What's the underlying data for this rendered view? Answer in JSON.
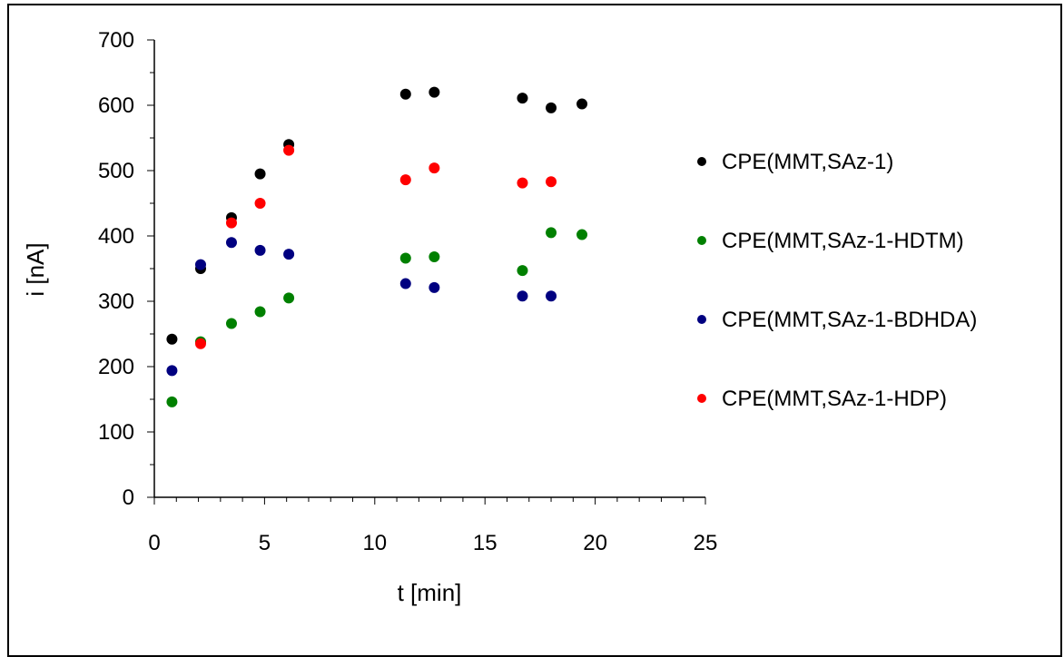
{
  "chart_data": {
    "type": "scatter",
    "xlabel": "t [min]",
    "ylabel": "i [nA]",
    "xlim": [
      0,
      25
    ],
    "ylim": [
      0,
      700
    ],
    "x_ticks": [
      "0",
      "5",
      "10",
      "15",
      "20",
      "25"
    ],
    "y_ticks": [
      "0",
      "100",
      "200",
      "300",
      "400",
      "500",
      "600",
      "700"
    ],
    "grid": false,
    "legend_position": "right",
    "series": [
      {
        "name": "CPE(MMT,SAz-1)",
        "color": "#000000",
        "points": [
          [
            0.8,
            242
          ],
          [
            2.1,
            350
          ],
          [
            3.5,
            428
          ],
          [
            4.8,
            495
          ],
          [
            6.1,
            540
          ],
          [
            11.4,
            617
          ],
          [
            12.7,
            620
          ],
          [
            16.7,
            611
          ],
          [
            18.0,
            596
          ],
          [
            19.4,
            602
          ]
        ]
      },
      {
        "name": "CPE(MMT,SAz-1-HDTM)",
        "color": "#008000",
        "points": [
          [
            0.8,
            146
          ],
          [
            2.1,
            238
          ],
          [
            3.5,
            266
          ],
          [
            4.8,
            284
          ],
          [
            6.1,
            305
          ],
          [
            11.4,
            366
          ],
          [
            12.7,
            368
          ],
          [
            16.7,
            347
          ],
          [
            18.0,
            405
          ],
          [
            19.4,
            402
          ]
        ]
      },
      {
        "name": "CPE(MMT,SAz-1-BDHDA)",
        "color": "#000080",
        "points": [
          [
            0.8,
            194
          ],
          [
            2.1,
            356
          ],
          [
            3.5,
            390
          ],
          [
            4.8,
            378
          ],
          [
            6.1,
            372
          ],
          [
            11.4,
            327
          ],
          [
            12.7,
            321
          ],
          [
            16.7,
            308
          ],
          [
            18.0,
            308
          ]
        ]
      },
      {
        "name": "CPE(MMT,SAz-1-HDP)",
        "color": "#ff0000",
        "points": [
          [
            2.1,
            235
          ],
          [
            3.5,
            420
          ],
          [
            4.8,
            450
          ],
          [
            6.1,
            531
          ],
          [
            11.4,
            486
          ],
          [
            12.7,
            504
          ],
          [
            16.7,
            481
          ],
          [
            18.0,
            483
          ]
        ]
      }
    ]
  }
}
